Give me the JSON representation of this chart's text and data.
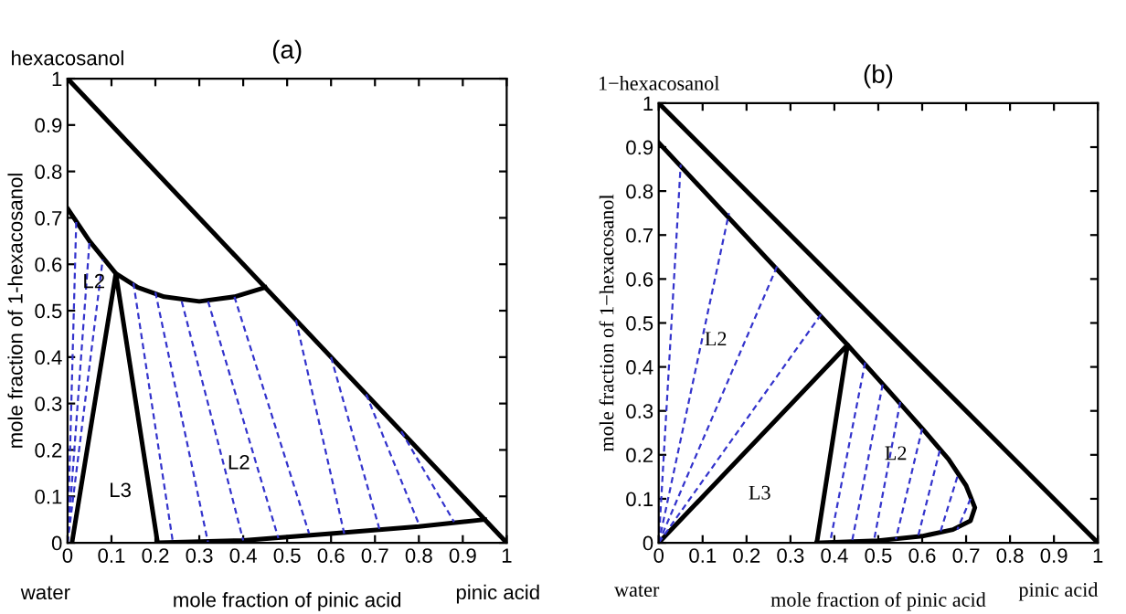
{
  "chart_data": [
    {
      "type": "line",
      "title": "(a)",
      "xlabel": "mole fraction of pinic acid",
      "ylabel": "mole fraction of 1-hexacosanol",
      "xlim": [
        0,
        1
      ],
      "ylim": [
        0,
        1
      ],
      "xticks": [
        0,
        0.1,
        0.2,
        0.3,
        0.4,
        0.5,
        0.6,
        0.7,
        0.8,
        0.9,
        1
      ],
      "yticks": [
        0,
        0.1,
        0.2,
        0.3,
        0.4,
        0.5,
        0.6,
        0.7,
        0.8,
        0.9,
        1
      ],
      "grid": false,
      "legend": false,
      "annotations": [
        "hexacosanol",
        "water",
        "pinic acid",
        "L2",
        "L2",
        "L3"
      ],
      "series": [
        {
          "color": "#000000",
          "line_style": "solid",
          "x": [
            0,
            1
          ],
          "values": [
            1,
            0
          ]
        },
        {
          "color": "#000000",
          "line_style": "solid",
          "x": [
            0,
            0.05,
            0.11,
            0.16,
            0.22,
            0.3,
            0.38,
            0.45
          ],
          "values": [
            0.72,
            0.65,
            0.58,
            0.55,
            0.53,
            0.52,
            0.53,
            0.55
          ]
        },
        {
          "color": "#000000",
          "line_style": "solid",
          "x": [
            0.01,
            0.11,
            0.205
          ],
          "values": [
            0,
            0.58,
            0
          ]
        },
        {
          "color": "#000000",
          "line_style": "solid",
          "x": [
            0.205,
            0.4,
            0.6,
            0.8,
            0.95
          ],
          "values": [
            0,
            0.005,
            0.02,
            0.035,
            0.05
          ]
        },
        {
          "color": "#3333cc",
          "line_style": "dashed",
          "x": [
            0,
            0.02
          ],
          "values": [
            0,
            0.7
          ]
        },
        {
          "color": "#3333cc",
          "line_style": "dashed",
          "x": [
            0,
            0.05
          ],
          "values": [
            0,
            0.65
          ]
        },
        {
          "color": "#3333cc",
          "line_style": "dashed",
          "x": [
            0,
            0.08
          ],
          "values": [
            0,
            0.61
          ]
        },
        {
          "color": "#3333cc",
          "line_style": "dashed",
          "x": [
            0.15,
            0.24
          ],
          "values": [
            0.56,
            0
          ]
        },
        {
          "color": "#3333cc",
          "line_style": "dashed",
          "x": [
            0.2,
            0.32
          ],
          "values": [
            0.54,
            0
          ]
        },
        {
          "color": "#3333cc",
          "line_style": "dashed",
          "x": [
            0.26,
            0.4
          ],
          "values": [
            0.52,
            0.005
          ]
        },
        {
          "color": "#3333cc",
          "line_style": "dashed",
          "x": [
            0.32,
            0.48
          ],
          "values": [
            0.52,
            0.01
          ]
        },
        {
          "color": "#3333cc",
          "line_style": "dashed",
          "x": [
            0.38,
            0.55
          ],
          "values": [
            0.53,
            0.02
          ]
        },
        {
          "color": "#3333cc",
          "line_style": "dashed",
          "x": [
            0.52,
            0.63
          ],
          "values": [
            0.48,
            0.02
          ]
        },
        {
          "color": "#3333cc",
          "line_style": "dashed",
          "x": [
            0.6,
            0.71
          ],
          "values": [
            0.4,
            0.03
          ]
        },
        {
          "color": "#3333cc",
          "line_style": "dashed",
          "x": [
            0.68,
            0.8
          ],
          "values": [
            0.32,
            0.04
          ]
        },
        {
          "color": "#3333cc",
          "line_style": "dashed",
          "x": [
            0.76,
            0.88
          ],
          "values": [
            0.24,
            0.045
          ]
        }
      ]
    },
    {
      "type": "line",
      "title": "(b)",
      "xlabel": "mole fraction of pinic acid",
      "ylabel": "mole fraction of 1−hexacosanol",
      "xlim": [
        0,
        1
      ],
      "ylim": [
        0,
        1
      ],
      "xticks": [
        0,
        0.1,
        0.2,
        0.3,
        0.4,
        0.5,
        0.6,
        0.7,
        0.8,
        0.9,
        1
      ],
      "yticks": [
        0,
        0.1,
        0.2,
        0.3,
        0.4,
        0.5,
        0.6,
        0.7,
        0.8,
        0.9,
        1
      ],
      "grid": false,
      "legend": false,
      "annotations": [
        "1−hexacosanol",
        "water",
        "pinic acid",
        "L2",
        "L2",
        "L3"
      ],
      "series": [
        {
          "color": "#000000",
          "line_style": "solid",
          "x": [
            0,
            1
          ],
          "values": [
            1,
            0
          ]
        },
        {
          "color": "#000000",
          "line_style": "solid",
          "x": [
            0,
            0.43,
            0.52,
            0.6,
            0.66,
            0.7,
            0.72,
            0.71,
            0.67,
            0.6,
            0.5,
            0.36
          ],
          "values": [
            0.91,
            0.45,
            0.35,
            0.26,
            0.19,
            0.13,
            0.08,
            0.05,
            0.03,
            0.015,
            0.005,
            0
          ]
        },
        {
          "color": "#000000",
          "line_style": "solid",
          "x": [
            0,
            0.43,
            0.36
          ],
          "values": [
            0,
            0.45,
            0
          ]
        },
        {
          "color": "#3333cc",
          "line_style": "dashed",
          "x": [
            0,
            0.05
          ],
          "values": [
            0,
            0.86
          ]
        },
        {
          "color": "#3333cc",
          "line_style": "dashed",
          "x": [
            0,
            0.16
          ],
          "values": [
            0,
            0.75
          ]
        },
        {
          "color": "#3333cc",
          "line_style": "dashed",
          "x": [
            0,
            0.27
          ],
          "values": [
            0,
            0.63
          ]
        },
        {
          "color": "#3333cc",
          "line_style": "dashed",
          "x": [
            0,
            0.37
          ],
          "values": [
            0,
            0.52
          ]
        },
        {
          "color": "#3333cc",
          "line_style": "dashed",
          "x": [
            0.47,
            0.39
          ],
          "values": [
            0.41,
            0
          ]
        },
        {
          "color": "#3333cc",
          "line_style": "dashed",
          "x": [
            0.51,
            0.44
          ],
          "values": [
            0.36,
            0.002
          ]
        },
        {
          "color": "#3333cc",
          "line_style": "dashed",
          "x": [
            0.55,
            0.49
          ],
          "values": [
            0.32,
            0.004
          ]
        },
        {
          "color": "#3333cc",
          "line_style": "dashed",
          "x": [
            0.6,
            0.54
          ],
          "values": [
            0.26,
            0.008
          ]
        },
        {
          "color": "#3333cc",
          "line_style": "dashed",
          "x": [
            0.64,
            0.59
          ],
          "values": [
            0.21,
            0.012
          ]
        },
        {
          "color": "#3333cc",
          "line_style": "dashed",
          "x": [
            0.68,
            0.64
          ],
          "values": [
            0.15,
            0.02
          ]
        },
        {
          "color": "#3333cc",
          "line_style": "dashed",
          "x": [
            0.71,
            0.68
          ],
          "values": [
            0.1,
            0.03
          ]
        }
      ]
    }
  ]
}
